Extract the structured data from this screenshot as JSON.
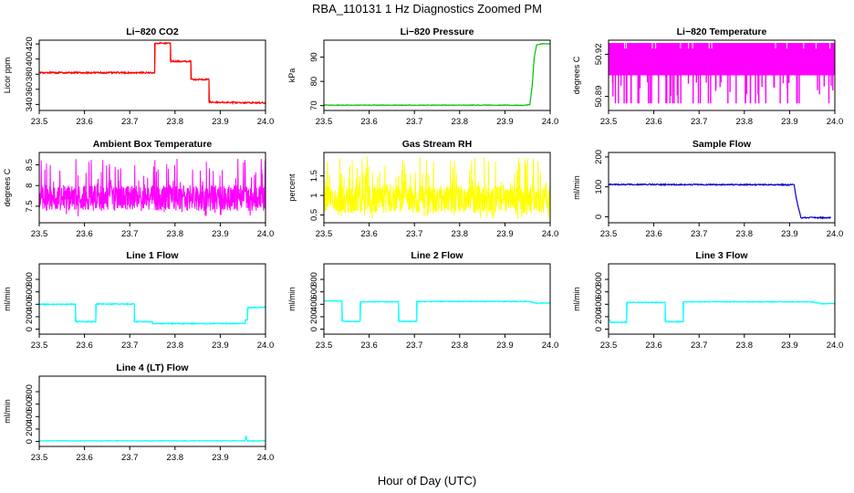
{
  "figure": {
    "title": "RBA_110131  1 Hz Diagnostics Zoomed PM",
    "xlabel": "Hour of Day (UTC)"
  },
  "chart_data": [
    {
      "type": "line",
      "title": "Li−820 CO2",
      "ylabel": "Licor ppm",
      "color": "#ff0000",
      "xlim": [
        23.5,
        24.0
      ],
      "xticks": [
        "23.5",
        "23.6",
        "23.7",
        "23.8",
        "23.9",
        "24.0"
      ],
      "ylim": [
        332,
        425
      ],
      "yticks": [
        340,
        360,
        380,
        400,
        420
      ],
      "noise": 1.0,
      "x": [
        23.5,
        23.755,
        23.755,
        23.79,
        23.79,
        23.835,
        23.835,
        23.875,
        23.875,
        24.0
      ],
      "y": [
        382,
        382,
        421,
        421,
        397,
        397,
        373,
        373,
        343,
        342
      ]
    },
    {
      "type": "line",
      "title": "Li−820 Pressure",
      "ylabel": "kPa",
      "color": "#00c000",
      "xlim": [
        23.5,
        24.0
      ],
      "xticks": [
        "23.5",
        "23.6",
        "23.7",
        "23.8",
        "23.9",
        "24.0"
      ],
      "ylim": [
        68,
        97
      ],
      "yticks": [
        70,
        80,
        90
      ],
      "noise": 0.1,
      "x": [
        23.5,
        23.9,
        23.94,
        23.955,
        23.96,
        23.965,
        23.97,
        23.98,
        24.0
      ],
      "y": [
        70.2,
        70.2,
        70.1,
        70.4,
        78,
        90,
        95,
        95.5,
        95.5
      ]
    },
    {
      "type": "spikes",
      "title": "Li−820 Temperature",
      "ylabel": "degrees C",
      "color": "#ff00ff",
      "xlim": [
        23.5,
        24.0
      ],
      "xticks": [
        "23.5",
        "23.6",
        "23.7",
        "23.8",
        "23.9",
        "24.0"
      ],
      "ylim": [
        50.88,
        50.93
      ],
      "yticks": [
        50.89,
        50.92
      ],
      "band": [
        50.905,
        50.928
      ],
      "low": 50.885
    },
    {
      "type": "noise",
      "title": "Ambient Box Temperature",
      "ylabel": "degrees C",
      "color": "#ff00ff",
      "xlim": [
        23.5,
        24.0
      ],
      "xticks": [
        "23.5",
        "23.6",
        "23.7",
        "23.8",
        "23.9",
        "24.0"
      ],
      "ylim": [
        7.1,
        8.8
      ],
      "yticks": [
        7.5,
        8.0,
        8.5
      ],
      "center": 7.7,
      "lo": 7.25,
      "hi": 8.65
    },
    {
      "type": "noise",
      "title": "Gas Stream RH",
      "ylabel": "percent",
      "color": "#ffff00",
      "xlim": [
        23.5,
        24.0
      ],
      "xticks": [
        "23.5",
        "23.6",
        "23.7",
        "23.8",
        "23.9",
        "24.0"
      ],
      "ylim": [
        0.3,
        2.1
      ],
      "yticks": [
        0.5,
        1.0,
        1.5
      ],
      "center": 0.9,
      "lo": 0.4,
      "hi": 2.0
    },
    {
      "type": "line",
      "title": "Sample Flow",
      "ylabel": "ml/min",
      "color": "#0000cc",
      "xlim": [
        23.5,
        24.0
      ],
      "xticks": [
        "23.5",
        "23.6",
        "23.7",
        "23.8",
        "23.9",
        "24.0"
      ],
      "ylim": [
        -20,
        215
      ],
      "yticks": [
        0,
        100,
        200
      ],
      "noise": 2.0,
      "x": [
        23.5,
        23.91,
        23.915,
        23.925,
        23.99
      ],
      "y": [
        108,
        107,
        60,
        -3,
        -3
      ]
    },
    {
      "type": "line",
      "title": "Line 1 Flow",
      "ylabel": "ml/min",
      "color": "#00ffff",
      "xlim": [
        23.5,
        24.0
      ],
      "xticks": [
        "23.5",
        "23.6",
        "23.7",
        "23.8",
        "23.9",
        "24.0"
      ],
      "ylim": [
        -80,
        1050
      ],
      "yticks": [
        0,
        200,
        400,
        600,
        800
      ],
      "noise": 8,
      "x": [
        23.5,
        23.58,
        23.58,
        23.625,
        23.625,
        23.71,
        23.71,
        23.75,
        23.75,
        23.955,
        23.955,
        23.96,
        23.96,
        24.0
      ],
      "y": [
        400,
        400,
        120,
        120,
        405,
        405,
        120,
        120,
        90,
        90,
        150,
        150,
        345,
        350
      ]
    },
    {
      "type": "line",
      "title": "Line 2 Flow",
      "ylabel": "ml/min",
      "color": "#00ffff",
      "xlim": [
        23.5,
        24.0
      ],
      "xticks": [
        "23.5",
        "23.6",
        "23.7",
        "23.8",
        "23.9",
        "24.0"
      ],
      "ylim": [
        -80,
        1050
      ],
      "yticks": [
        0,
        200,
        400,
        600,
        800
      ],
      "noise": 6,
      "x": [
        23.5,
        23.54,
        23.54,
        23.58,
        23.58,
        23.665,
        23.665,
        23.705,
        23.705,
        23.95,
        23.97,
        24.0
      ],
      "y": [
        455,
        455,
        125,
        125,
        440,
        440,
        125,
        125,
        445,
        445,
        420,
        420
      ]
    },
    {
      "type": "line",
      "title": "Line 3 Flow",
      "ylabel": "ml/min",
      "color": "#00ffff",
      "xlim": [
        23.5,
        24.0
      ],
      "xticks": [
        "23.5",
        "23.6",
        "23.7",
        "23.8",
        "23.9",
        "24.0"
      ],
      "ylim": [
        -80,
        1050
      ],
      "yticks": [
        0,
        200,
        400,
        600,
        800
      ],
      "noise": 6,
      "x": [
        23.5,
        23.5,
        23.505,
        23.54,
        23.54,
        23.625,
        23.625,
        23.665,
        23.665,
        23.95,
        23.97,
        24.0
      ],
      "y": [
        430,
        170,
        110,
        110,
        430,
        430,
        120,
        120,
        440,
        440,
        410,
        410
      ]
    },
    {
      "type": "line",
      "title": "Line 4 (LT) Flow",
      "ylabel": "ml/min",
      "color": "#00ffff",
      "xlim": [
        23.5,
        24.0
      ],
      "xticks": [
        "23.5",
        "23.6",
        "23.7",
        "23.8",
        "23.9",
        "24.0"
      ],
      "ylim": [
        -80,
        1050
      ],
      "yticks": [
        0,
        200,
        400,
        600,
        800
      ],
      "noise": 4,
      "x": [
        23.5,
        23.955,
        23.957,
        23.959,
        23.961,
        24.0
      ],
      "y": [
        10,
        10,
        90,
        20,
        10,
        10
      ]
    }
  ]
}
